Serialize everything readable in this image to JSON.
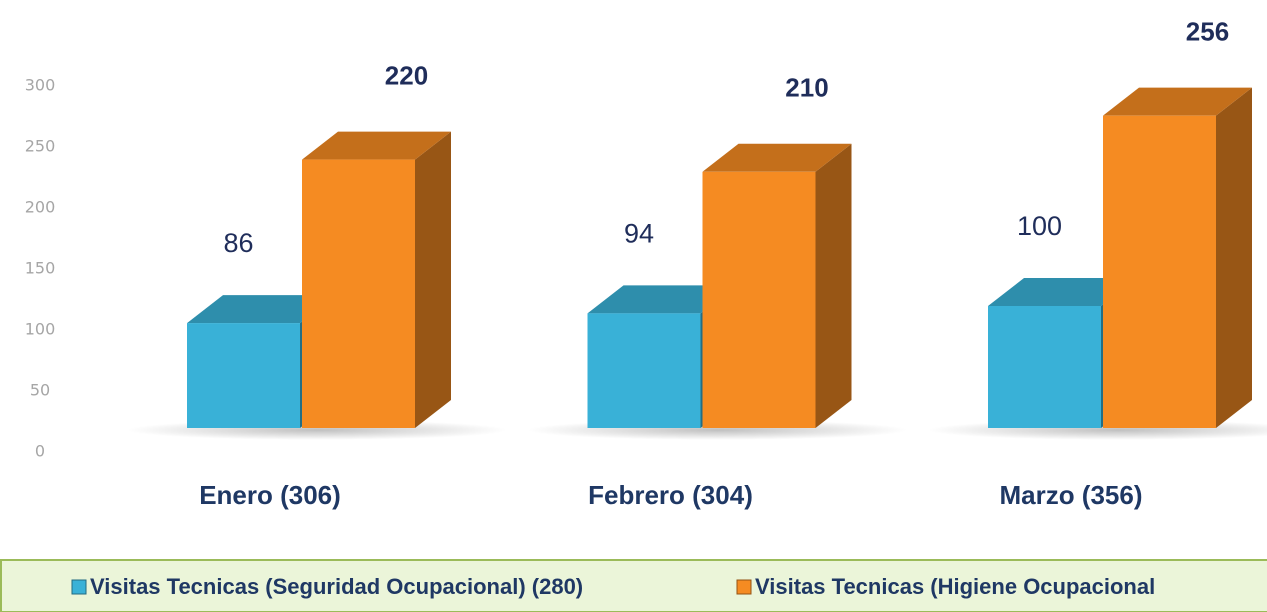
{
  "chart_data": {
    "type": "bar3d",
    "categories": [
      "Enero (306)",
      "Febrero (304)",
      "Marzo (356)"
    ],
    "series": [
      {
        "name": "Visitas Tecnicas (Seguridad Ocupacional) (280)",
        "color": "#39b1d7",
        "values": [
          86,
          94,
          100
        ]
      },
      {
        "name": "Visitas Tecnicas (Higiene Ocupacional",
        "color": "#f58b22",
        "values": [
          220,
          210,
          256
        ]
      }
    ],
    "ylim": [
      0,
      300
    ],
    "yticks": [
      0,
      50,
      100,
      150,
      200,
      250,
      300
    ],
    "legend": "bottom"
  }
}
